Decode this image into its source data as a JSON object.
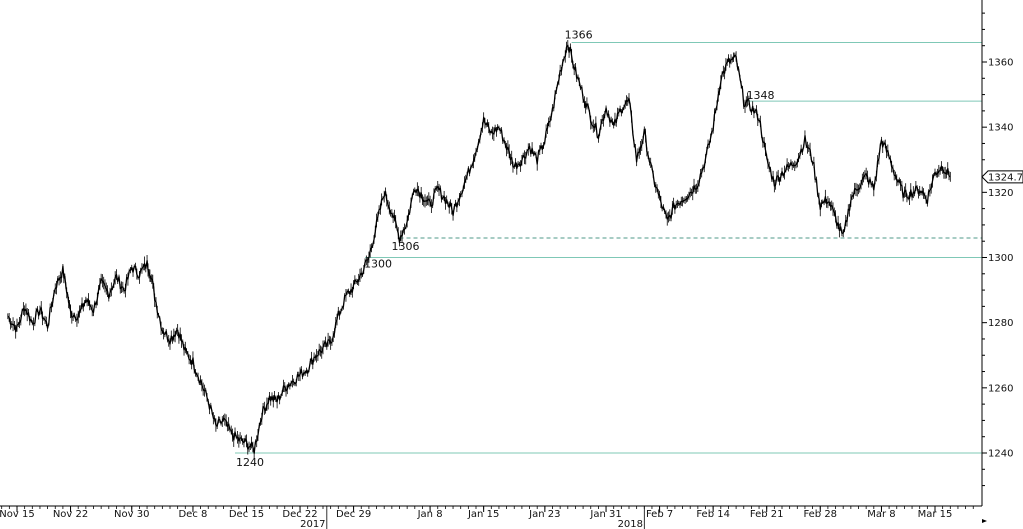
{
  "chart_data": {
    "type": "line",
    "title": "",
    "xlabel": "",
    "ylabel": "",
    "ylim": [
      1225,
      1380
    ],
    "yticks": [
      1240,
      1260,
      1280,
      1300,
      1320,
      1340,
      1360
    ],
    "xticks": [
      {
        "label": "Nov 15",
        "day": 0
      },
      {
        "label": "Nov 22",
        "day": 7
      },
      {
        "label": "Nov 30",
        "day": 15
      },
      {
        "label": "Dec 8",
        "day": 23
      },
      {
        "label": "Dec 15",
        "day": 30
      },
      {
        "label": "Dec 22",
        "day": 37
      },
      {
        "label": "Dec 29",
        "day": 44
      },
      {
        "label": "Jan 8",
        "day": 54
      },
      {
        "label": "Jan 15",
        "day": 61
      },
      {
        "label": "Jan 23",
        "day": 69
      },
      {
        "label": "Jan 31",
        "day": 77
      },
      {
        "label": "Feb 7",
        "day": 84
      },
      {
        "label": "Feb 14",
        "day": 91
      },
      {
        "label": "Feb 21",
        "day": 98
      },
      {
        "label": "Feb 28",
        "day": 105
      },
      {
        "label": "Mar 8",
        "day": 113
      },
      {
        "label": "Mar 15",
        "day": 120
      }
    ],
    "year_labels": [
      {
        "label": "2017",
        "day": 40.5
      },
      {
        "label": "2018",
        "day": 82
      }
    ],
    "series": [
      {
        "values": [
          [
            -1.2,
            1282
          ],
          [
            0,
            1278
          ],
          [
            1,
            1285
          ],
          [
            2,
            1280
          ],
          [
            3,
            1284
          ],
          [
            4,
            1279
          ],
          [
            5,
            1291
          ],
          [
            6,
            1296
          ],
          [
            6.5,
            1290
          ],
          [
            7,
            1283
          ],
          [
            8,
            1282
          ],
          [
            9,
            1287
          ],
          [
            10,
            1284
          ],
          [
            11,
            1292
          ],
          [
            12,
            1289
          ],
          [
            13,
            1294
          ],
          [
            14,
            1290
          ],
          [
            15,
            1297
          ],
          [
            16,
            1295
          ],
          [
            17,
            1298
          ],
          [
            17.5,
            1295
          ],
          [
            18,
            1288
          ],
          [
            19,
            1278
          ],
          [
            20,
            1275
          ],
          [
            21,
            1278
          ],
          [
            22,
            1271
          ],
          [
            23,
            1268
          ],
          [
            24,
            1262
          ],
          [
            25,
            1256
          ],
          [
            26,
            1248
          ],
          [
            27,
            1250
          ],
          [
            28,
            1246
          ],
          [
            29,
            1244
          ],
          [
            30,
            1243
          ],
          [
            31,
            1241
          ],
          [
            32,
            1252
          ],
          [
            33,
            1257
          ],
          [
            34,
            1256
          ],
          [
            35,
            1260
          ],
          [
            36,
            1262
          ],
          [
            37,
            1264
          ],
          [
            38,
            1266
          ],
          [
            39,
            1270
          ],
          [
            40,
            1272
          ],
          [
            41,
            1274
          ],
          [
            42,
            1282
          ],
          [
            43,
            1288
          ],
          [
            44,
            1291
          ],
          [
            45,
            1295
          ],
          [
            46,
            1300
          ],
          [
            47,
            1310
          ],
          [
            48,
            1320
          ],
          [
            49,
            1314
          ],
          [
            50,
            1306
          ],
          [
            51,
            1311
          ],
          [
            52,
            1322
          ],
          [
            53,
            1319
          ],
          [
            54,
            1316
          ],
          [
            55,
            1321
          ],
          [
            56,
            1318
          ],
          [
            57,
            1314
          ],
          [
            58,
            1320
          ],
          [
            59,
            1326
          ],
          [
            60,
            1333
          ],
          [
            61,
            1342
          ],
          [
            62,
            1338
          ],
          [
            63,
            1340
          ],
          [
            64,
            1334
          ],
          [
            65,
            1328
          ],
          [
            66,
            1330
          ],
          [
            67,
            1334
          ],
          [
            68,
            1330
          ],
          [
            69,
            1336
          ],
          [
            70,
            1345
          ],
          [
            71,
            1357
          ],
          [
            72,
            1366
          ],
          [
            73,
            1357
          ],
          [
            74,
            1350
          ],
          [
            75,
            1343
          ],
          [
            76,
            1338
          ],
          [
            77,
            1346
          ],
          [
            78,
            1340
          ],
          [
            79,
            1346
          ],
          [
            80,
            1348
          ],
          [
            81,
            1330
          ],
          [
            82,
            1338
          ],
          [
            83,
            1326
          ],
          [
            84,
            1318
          ],
          [
            85,
            1311
          ],
          [
            86,
            1316
          ],
          [
            87,
            1318
          ],
          [
            88,
            1320
          ],
          [
            89,
            1323
          ],
          [
            90,
            1330
          ],
          [
            91,
            1340
          ],
          [
            92,
            1355
          ],
          [
            93,
            1360
          ],
          [
            94,
            1361
          ],
          [
            95,
            1348
          ],
          [
            96,
            1346
          ],
          [
            97,
            1343
          ],
          [
            98,
            1330
          ],
          [
            99,
            1323
          ],
          [
            100,
            1326
          ],
          [
            101,
            1328
          ],
          [
            102,
            1330
          ],
          [
            103,
            1336
          ],
          [
            104,
            1330
          ],
          [
            105,
            1316
          ],
          [
            106,
            1318
          ],
          [
            107,
            1312
          ],
          [
            108,
            1306
          ],
          [
            109,
            1318
          ],
          [
            110,
            1322
          ],
          [
            111,
            1325
          ],
          [
            112,
            1321
          ],
          [
            113,
            1336
          ],
          [
            114,
            1331
          ],
          [
            115,
            1324
          ],
          [
            116,
            1319
          ],
          [
            117,
            1320
          ],
          [
            118,
            1321
          ],
          [
            119,
            1318
          ],
          [
            120,
            1326
          ],
          [
            121,
            1328
          ],
          [
            122,
            1324.75
          ]
        ]
      }
    ],
    "levels": [
      {
        "value": 1366,
        "label": "1366",
        "from_day": 72.5,
        "style": "solid"
      },
      {
        "value": 1348,
        "label": "1348",
        "from_day": 95.5,
        "style": "solid"
      },
      {
        "value": 1306,
        "label": "1306",
        "from_day": 50,
        "style": "dashed"
      },
      {
        "value": 1300,
        "label": "1300",
        "from_day": 45.5,
        "style": "solid"
      },
      {
        "value": 1240,
        "label": "1240",
        "from_day": 28.5,
        "style": "solid"
      }
    ],
    "last_price": "1324.75",
    "grid": false,
    "colors": {
      "price": "#000000",
      "level": "#7fc8b6",
      "last_bg": "#ffffff"
    }
  }
}
